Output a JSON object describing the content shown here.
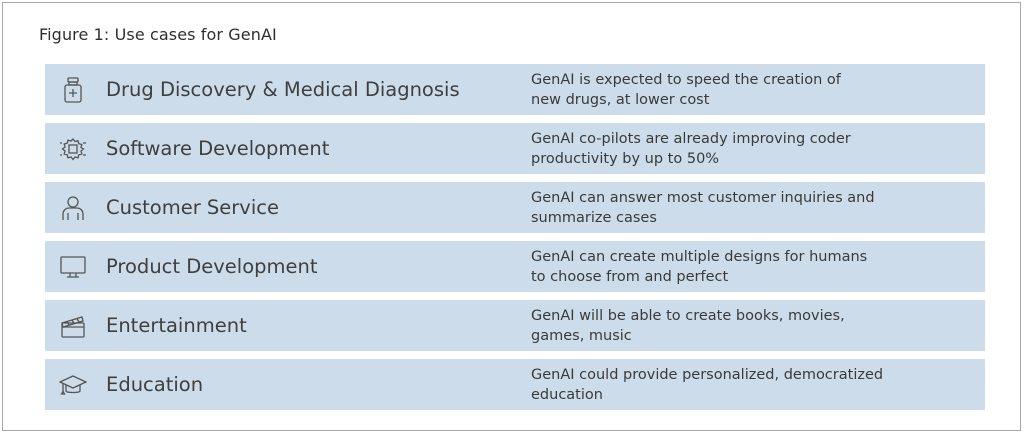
{
  "figure": {
    "title": "Figure 1: Use cases for GenAI"
  },
  "rows": [
    {
      "icon": "medicine-bottle-icon",
      "label": "Drug Discovery & Medical Diagnosis",
      "desc_lines": [
        "GenAI is expected to speed the creation of",
        "new drugs, at lower cost"
      ]
    },
    {
      "icon": "chip-gear-icon",
      "label": "Software Development",
      "desc_lines": [
        "GenAI co-pilots are already improving coder",
        "productivity by up to 50%"
      ]
    },
    {
      "icon": "person-icon",
      "label": "Customer Service",
      "desc_lines": [
        "GenAI can answer most customer inquiries and",
        "summarize cases"
      ]
    },
    {
      "icon": "monitor-icon",
      "label": "Product Development",
      "desc_lines": [
        "GenAI can create multiple designs for humans",
        "to choose from and perfect"
      ]
    },
    {
      "icon": "clapperboard-icon",
      "label": "Entertainment",
      "desc_lines": [
        "GenAI will be able to create books, movies,",
        "games, music"
      ]
    },
    {
      "icon": "graduation-cap-icon",
      "label": "Education",
      "desc_lines": [
        "GenAI could provide personalized, democratized",
        "education"
      ]
    }
  ]
}
